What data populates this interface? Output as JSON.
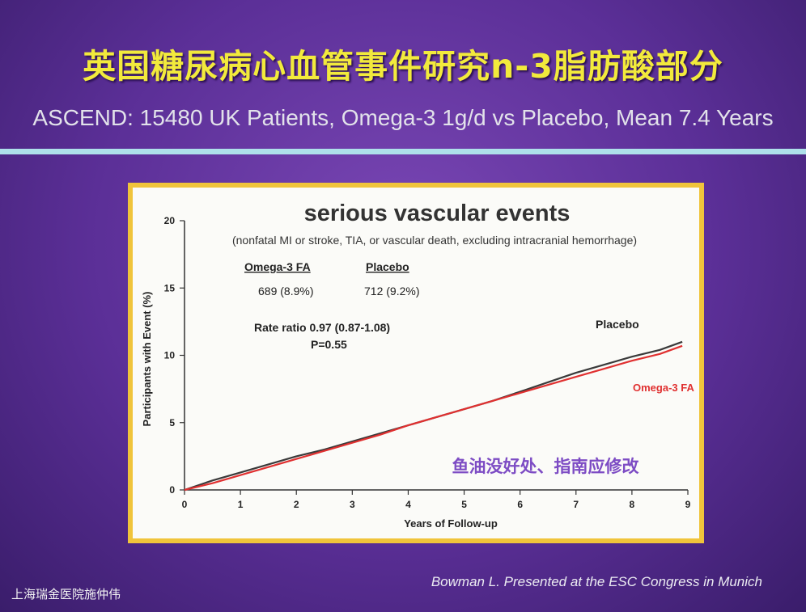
{
  "slide": {
    "title": "英国糖尿病心血管事件研究n-3脂肪酸部分",
    "subtitle": "ASCEND: 15480 UK Patients, Omega-3 1g/d vs Placebo, Mean 7.4 Years",
    "footer_left": "上海瑞金医院施仲伟",
    "footer_right": "Bowman L.  Presented at the ESC Congress in Munich",
    "colors": {
      "title": "#f2ea3c",
      "divider": "#aee0ea",
      "frame": "#f0c43b",
      "background": "#5b2f97"
    }
  },
  "chart_data": {
    "type": "line",
    "title": "serious vascular events",
    "subtitle": "(nonfatal MI or stroke, TIA, or vascular death, excluding intracranial hemorrhage)",
    "xlabel": "Years of Follow-up",
    "ylabel": "Participants with Event (%)",
    "xlim": [
      0,
      9
    ],
    "ylim": [
      0,
      20
    ],
    "xticks": [
      0,
      1,
      2,
      3,
      4,
      5,
      6,
      7,
      8,
      9
    ],
    "yticks": [
      0,
      5,
      10,
      15,
      20
    ],
    "grid": false,
    "table": {
      "headers": [
        "Omega-3 FA",
        "Placebo"
      ],
      "values": [
        "689 (8.9%)",
        "712 (9.2%)"
      ]
    },
    "rate_ratio": "Rate ratio 0.97 (0.87-1.08)",
    "p_value": "P=0.55",
    "annotation": "鱼油没好处、指南应修改",
    "series": [
      {
        "name": "Placebo",
        "color": "#3a3a3a",
        "x": [
          0,
          0.5,
          1,
          1.5,
          2,
          2.5,
          3,
          3.5,
          4,
          4.5,
          5,
          5.5,
          6,
          6.5,
          7,
          7.5,
          8,
          8.5,
          8.9
        ],
        "y": [
          0,
          0.7,
          1.3,
          1.9,
          2.5,
          3.0,
          3.6,
          4.2,
          4.8,
          5.4,
          6.0,
          6.6,
          7.3,
          8.0,
          8.7,
          9.3,
          9.9,
          10.4,
          11.0
        ]
      },
      {
        "name": "Omega-3 FA",
        "color": "#e03030",
        "x": [
          0,
          0.5,
          1,
          1.5,
          2,
          2.5,
          3,
          3.5,
          4,
          4.5,
          5,
          5.5,
          6,
          6.5,
          7,
          7.5,
          8,
          8.5,
          8.9
        ],
        "y": [
          0,
          0.5,
          1.1,
          1.7,
          2.3,
          2.9,
          3.5,
          4.1,
          4.8,
          5.4,
          6.0,
          6.6,
          7.2,
          7.8,
          8.4,
          9.0,
          9.6,
          10.1,
          10.7
        ]
      }
    ]
  }
}
